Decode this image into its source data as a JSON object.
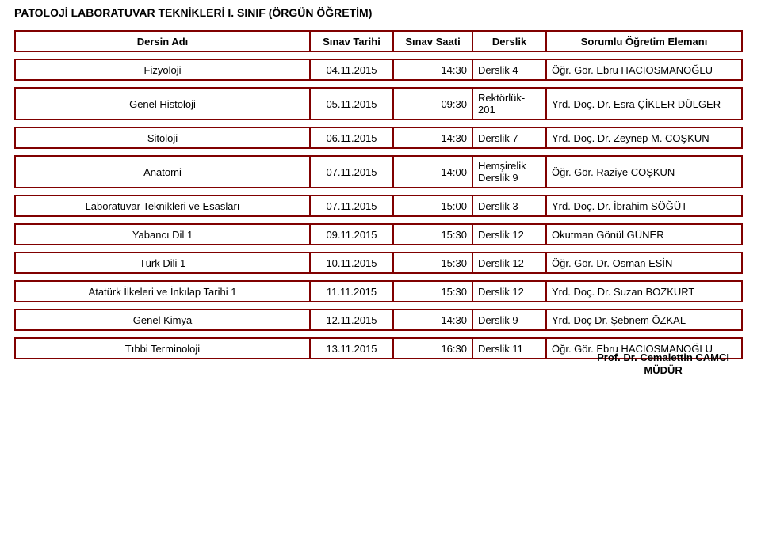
{
  "page_title": "PATOLOJİ LABORATUVAR TEKNİKLERİ I. SINIF (ÖRGÜN ÖĞRETİM)",
  "headers": {
    "course": "Dersin Adı",
    "date": "Sınav Tarihi",
    "time": "Sınav Saati",
    "room": "Derslik",
    "instructor": "Sorumlu Öğretim Elemanı"
  },
  "rows": [
    {
      "course": "Fizyoloji",
      "date": "04.11.2015",
      "time": "14:30",
      "room": "Derslik 4",
      "instructor": "Öğr. Gör. Ebru HACIOSMANOĞLU"
    },
    {
      "course": "Genel Histoloji",
      "date": "05.11.2015",
      "time": "09:30",
      "room_line1": "Rektörlük-",
      "room_line2": "201",
      "instructor": "Yrd. Doç. Dr. Esra ÇİKLER DÜLGER"
    },
    {
      "course": "Sitoloji",
      "date": "06.11.2015",
      "time": "14:30",
      "room": "Derslik 7",
      "instructor": "Yrd. Doç. Dr. Zeynep M. COŞKUN"
    },
    {
      "course": "Anatomi",
      "date": "07.11.2015",
      "time": "14:00",
      "room_line1": "Hemşirelik",
      "room_line2": "Derslik 9",
      "instructor": "Öğr. Gör. Raziye COŞKUN"
    },
    {
      "course": "Laboratuvar Teknikleri ve Esasları",
      "date": "07.11.2015",
      "time": "15:00",
      "room": "Derslik 3",
      "instructor": "Yrd. Doç. Dr. İbrahim SÖĞÜT"
    },
    {
      "course": "Yabancı Dil 1",
      "date": "09.11.2015",
      "time": "15:30",
      "room": "Derslik 12",
      "instructor": "Okutman Gönül GÜNER"
    },
    {
      "course": "Türk Dili 1",
      "date": "10.11.2015",
      "time": "15:30",
      "room": "Derslik 12",
      "instructor": "Öğr. Gör. Dr. Osman ESİN"
    },
    {
      "course": "Atatürk İlkeleri ve İnkılap Tarihi 1",
      "date": "11.11.2015",
      "time": "15:30",
      "room": "Derslik 12",
      "instructor": "Yrd. Doç. Dr. Suzan BOZKURT"
    },
    {
      "course": "Genel Kimya",
      "date": "12.11.2015",
      "time": "14:30",
      "room": "Derslik 9",
      "instructor": "Yrd. Doç Dr. Şebnem ÖZKAL"
    },
    {
      "course": "Tıbbi Terminoloji",
      "date": "13.11.2015",
      "time": "16:30",
      "room": "Derslik 11",
      "instructor": "Öğr. Gör. Ebru HACIOSMANOĞLU"
    }
  ],
  "footer": {
    "name": "Prof. Dr. Cemalettin CAMCI",
    "title": "MÜDÜR"
  },
  "style": {
    "border_color": "#800000",
    "bg": "#ffffff",
    "font_size_body": 13,
    "font_size_title": 14
  }
}
